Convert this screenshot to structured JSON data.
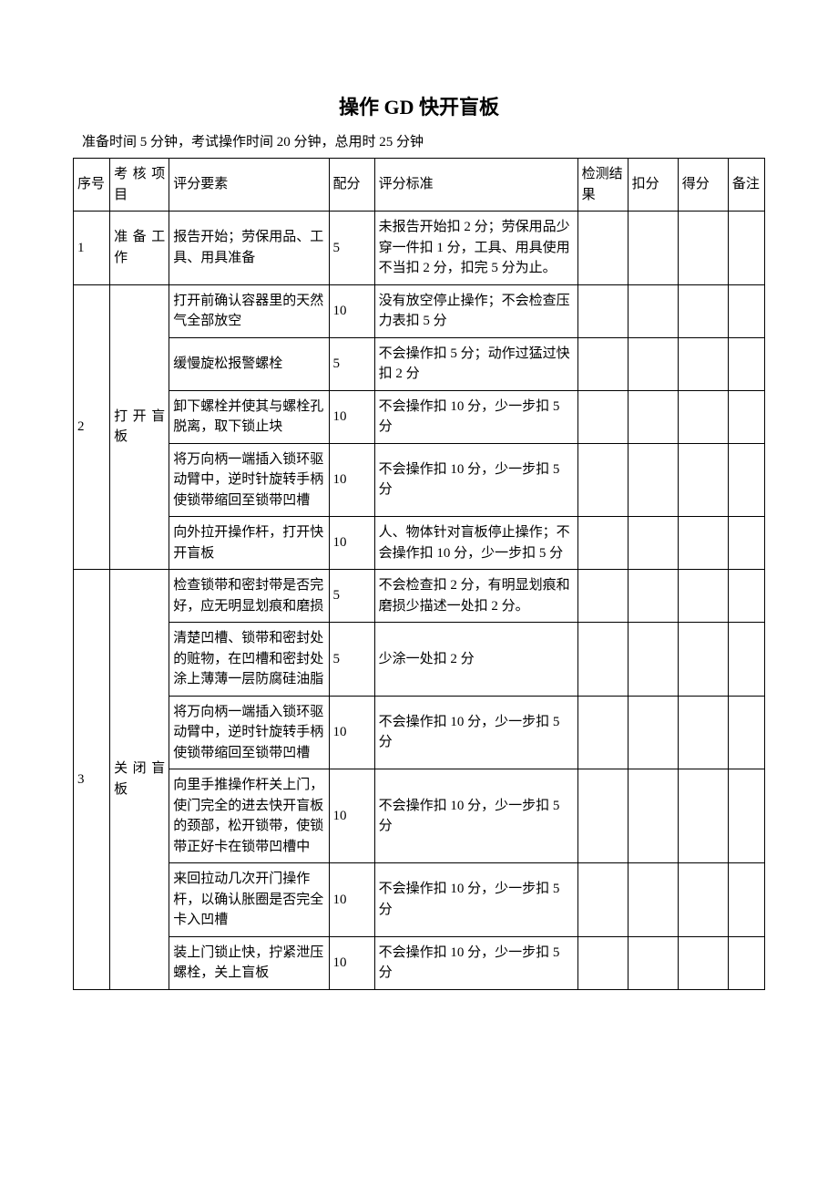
{
  "title": "操作 GD 快开盲板",
  "subtitle": "准备时间 5 分钟，考试操作时间 20 分钟，总用时 25 分钟",
  "headers": {
    "seq": "序号",
    "item": "考核项目",
    "element": "评分要素",
    "score": "配分",
    "standard": "评分标准",
    "result": "检测结果",
    "deduct": "扣分",
    "got": "得分",
    "note": "备注"
  },
  "groups": [
    {
      "seq": "1",
      "item": "准备工作",
      "rows": [
        {
          "element": "报告开始；劳保用品、工具、用具准备",
          "score": "5",
          "standard": "未报告开始扣 2 分；劳保用品少穿一件扣 1 分，工具、用具使用不当扣 2 分，扣完 5 分为止。"
        }
      ]
    },
    {
      "seq": "2",
      "item": "打开盲板",
      "rows": [
        {
          "element": "打开前确认容器里的天然气全部放空",
          "score": "10",
          "standard": "没有放空停止操作；不会检查压力表扣 5 分"
        },
        {
          "element": "缓慢旋松报警螺栓",
          "score": "5",
          "standard": "不会操作扣 5 分；动作过猛过快扣 2 分"
        },
        {
          "element": "卸下螺栓并使其与螺栓孔脱离，取下锁止块",
          "score": "10",
          "standard": "不会操作扣 10 分，少一步扣 5 分"
        },
        {
          "element": "将万向柄一端插入锁环驱动臂中，逆时针旋转手柄使锁带缩回至锁带凹槽",
          "score": "10",
          "standard": "不会操作扣 10 分，少一步扣 5 分"
        },
        {
          "element": "向外拉开操作杆，打开快开盲板",
          "score": "10",
          "standard": "人、物体针对盲板停止操作；不会操作扣 10 分，少一步扣 5 分"
        }
      ]
    },
    {
      "seq": "3",
      "item": "关闭盲板",
      "rows": [
        {
          "element": "检查锁带和密封带是否完好，应无明显划痕和磨损",
          "score": "5",
          "standard": "不会检查扣 2 分，有明显划痕和磨损少描述一处扣 2 分。"
        },
        {
          "element": "清楚凹槽、锁带和密封处的赃物，在凹槽和密封处涂上薄薄一层防腐硅油脂",
          "score": "5",
          "standard": "少涂一处扣 2 分"
        },
        {
          "element": "将万向柄一端插入锁环驱动臂中，逆时针旋转手柄使锁带缩回至锁带凹槽",
          "score": "10",
          "standard": "不会操作扣 10 分，少一步扣 5 分"
        },
        {
          "element": "向里手推操作杆关上门，使门完全的进去快开盲板的颈部，松开锁带，使锁带正好卡在锁带凹槽中",
          "score": "10",
          "standard": "不会操作扣 10 分，少一步扣 5 分"
        },
        {
          "element": "来回拉动几次开门操作杆，以确认胀圈是否完全卡入凹槽",
          "score": "10",
          "standard": "不会操作扣 10 分，少一步扣 5 分"
        },
        {
          "element": "装上门锁止快，拧紧泄压螺栓，关上盲板",
          "score": "10",
          "standard": "不会操作扣 10 分，少一步扣 5 分"
        }
      ]
    }
  ]
}
